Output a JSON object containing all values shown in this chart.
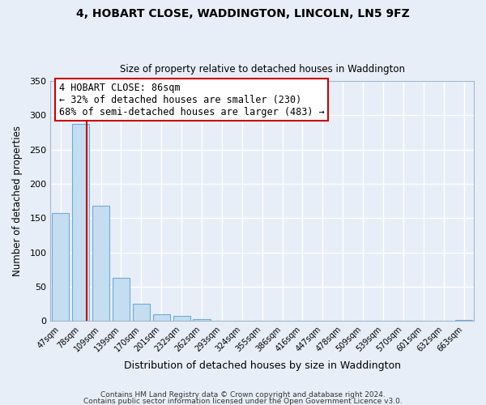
{
  "title": "4, HOBART CLOSE, WADDINGTON, LINCOLN, LN5 9FZ",
  "subtitle": "Size of property relative to detached houses in Waddington",
  "xlabel": "Distribution of detached houses by size in Waddington",
  "ylabel": "Number of detached properties",
  "bar_labels": [
    "47sqm",
    "78sqm",
    "109sqm",
    "139sqm",
    "170sqm",
    "201sqm",
    "232sqm",
    "262sqm",
    "293sqm",
    "324sqm",
    "355sqm",
    "386sqm",
    "416sqm",
    "447sqm",
    "478sqm",
    "509sqm",
    "539sqm",
    "570sqm",
    "601sqm",
    "632sqm",
    "663sqm"
  ],
  "bar_values": [
    157,
    287,
    168,
    63,
    25,
    10,
    7,
    3,
    0,
    0,
    0,
    0,
    0,
    0,
    0,
    0,
    0,
    0,
    0,
    0,
    2
  ],
  "bar_color": "#c5ddf0",
  "bar_edgecolor": "#6badd6",
  "property_line_color": "#cc0000",
  "annotation_title": "4 HOBART CLOSE: 86sqm",
  "annotation_line1": "← 32% of detached houses are smaller (230)",
  "annotation_line2": "68% of semi-detached houses are larger (483) →",
  "annotation_box_facecolor": "#ffffff",
  "annotation_box_edgecolor": "#cc0000",
  "ylim": [
    0,
    350
  ],
  "yticks": [
    0,
    50,
    100,
    150,
    200,
    250,
    300,
    350
  ],
  "footer_line1": "Contains HM Land Registry data © Crown copyright and database right 2024.",
  "footer_line2": "Contains public sector information licensed under the Open Government Licence v3.0.",
  "plot_bg_color": "#e8eef8",
  "fig_bg_color": "#e8eef8",
  "grid_color": "#ffffff",
  "spine_color": "#a0b8d0"
}
